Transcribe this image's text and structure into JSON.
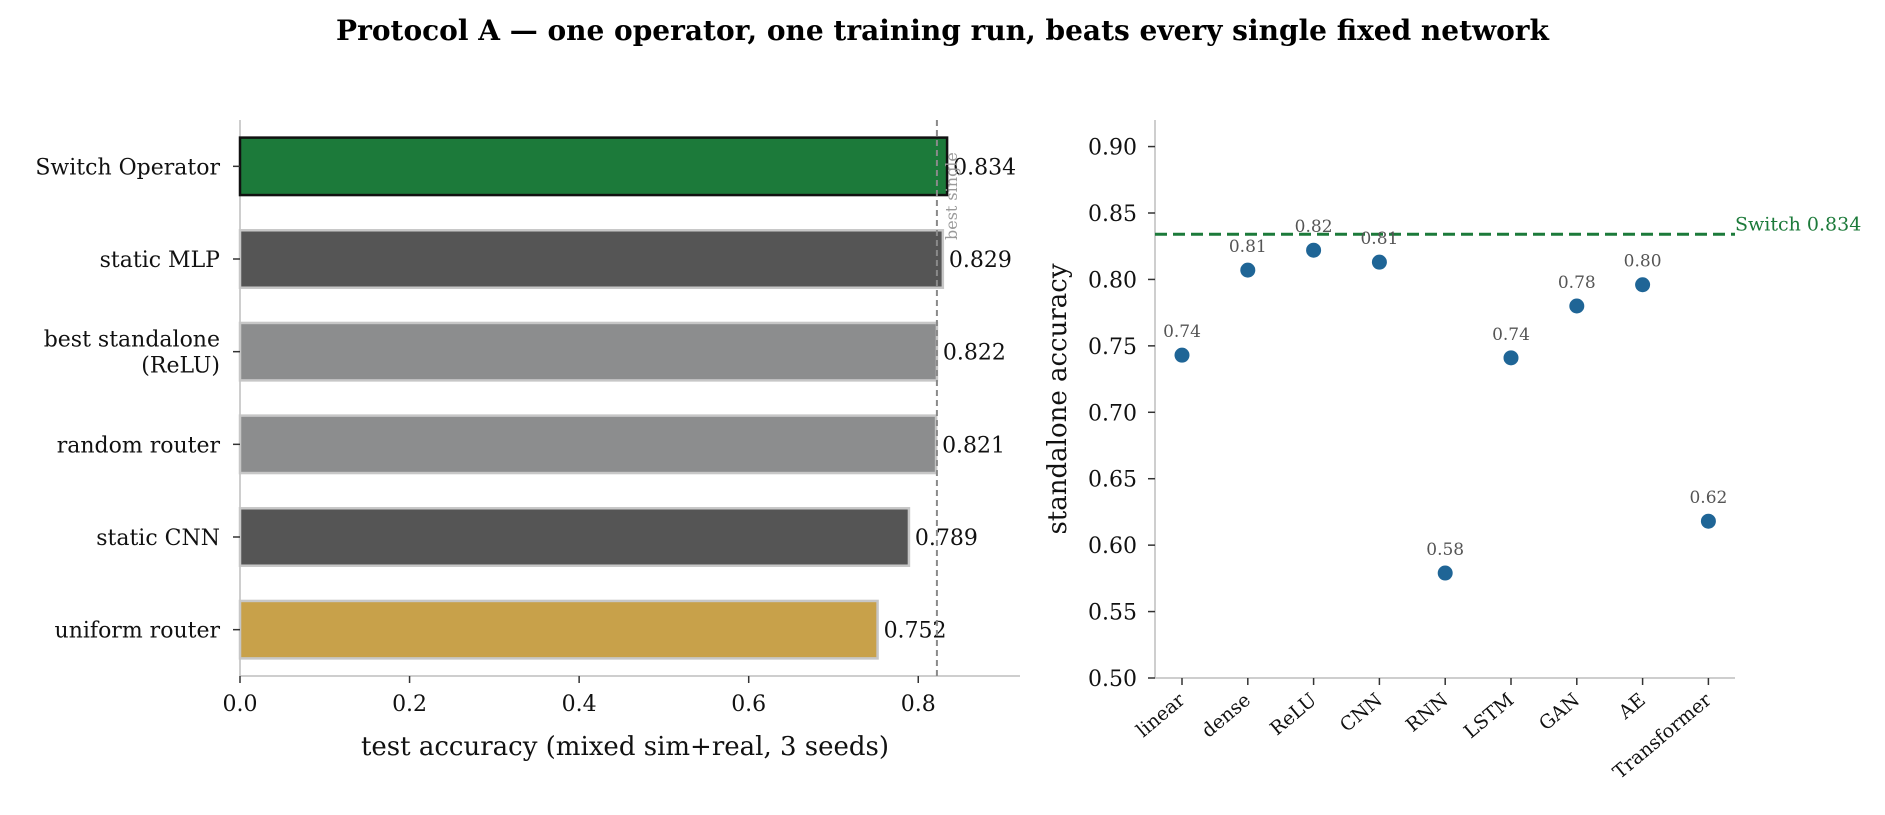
{
  "title": "Protocol A — one operator, one training run, beats every single fixed network",
  "chart_data": [
    {
      "type": "bar",
      "orientation": "horizontal",
      "categories": [
        "Switch Operator",
        "static MLP",
        "best standalone\n(ReLU)",
        "random router",
        "static CNN",
        "uniform router"
      ],
      "values": [
        0.834,
        0.829,
        0.822,
        0.821,
        0.789,
        0.752
      ],
      "value_labels": [
        "0.834",
        "0.829",
        "0.822",
        "0.821",
        "0.789",
        "0.752"
      ],
      "colors": [
        "#1c7a3a",
        "#555555",
        "#8c8d8e",
        "#8c8d8e",
        "#555555",
        "#c8a14a"
      ],
      "xlabel": "test accuracy (mixed sim+real, 3 seeds)",
      "xlim": [
        0,
        0.92
      ],
      "xticks": [
        0.0,
        0.2,
        0.4,
        0.6,
        0.8
      ],
      "xtick_labels": [
        "0.0",
        "0.2",
        "0.4",
        "0.6",
        "0.8"
      ],
      "reference_line": {
        "value": 0.822,
        "label": "best single"
      },
      "grid": false
    },
    {
      "type": "scatter",
      "categories": [
        "linear",
        "dense",
        "ReLU",
        "CNN",
        "RNN",
        "LSTM",
        "GAN",
        "AE",
        "Transformer"
      ],
      "values": [
        0.743,
        0.807,
        0.822,
        0.813,
        0.579,
        0.741,
        0.78,
        0.796,
        0.618
      ],
      "value_labels": [
        "0.74",
        "0.81",
        "0.82",
        "0.81",
        "0.58",
        "0.74",
        "0.78",
        "0.80",
        "0.62"
      ],
      "point_color": "#1f6596",
      "ylabel": "standalone accuracy",
      "ylim": [
        0.5,
        0.92
      ],
      "yticks": [
        0.5,
        0.55,
        0.6,
        0.65,
        0.7,
        0.75,
        0.8,
        0.85,
        0.9
      ],
      "ytick_labels": [
        "0.50",
        "0.55",
        "0.60",
        "0.65",
        "0.70",
        "0.75",
        "0.80",
        "0.85",
        "0.90"
      ],
      "reference_line": {
        "value": 0.834,
        "label": "Switch 0.834",
        "color": "#1c7a3a"
      },
      "grid": false
    }
  ]
}
